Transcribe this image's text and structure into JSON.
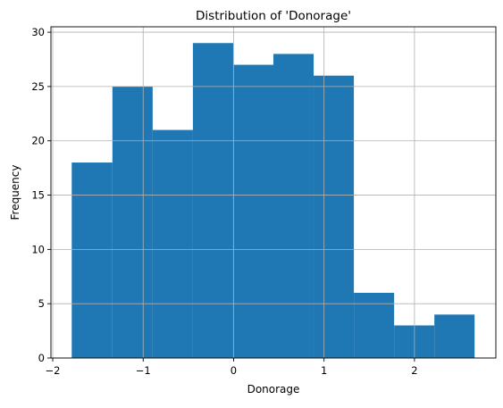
{
  "chart_data": {
    "type": "bar",
    "title": "Distribution of 'Donorage'",
    "xlabel": "Donorage",
    "ylabel": "Frequency",
    "bin_edges": [
      -1.79,
      -1.34,
      -0.895,
      -0.45,
      -0.005,
      0.44,
      0.885,
      1.33,
      1.775,
      2.22,
      2.665
    ],
    "values": [
      18,
      25,
      21,
      29,
      27,
      28,
      26,
      6,
      3,
      4
    ],
    "xlim": [
      -2.02,
      2.9
    ],
    "ylim": [
      0,
      30.5
    ],
    "x_ticks": [
      -2,
      -1,
      0,
      1,
      2
    ],
    "x_tick_labels": [
      "−2",
      "−1",
      "0",
      "1",
      "2"
    ],
    "y_ticks": [
      0,
      5,
      10,
      15,
      20,
      25,
      30
    ],
    "y_tick_labels": [
      "0",
      "5",
      "10",
      "15",
      "20",
      "25",
      "30"
    ],
    "grid": true,
    "bar_color": "#1f77b4"
  }
}
